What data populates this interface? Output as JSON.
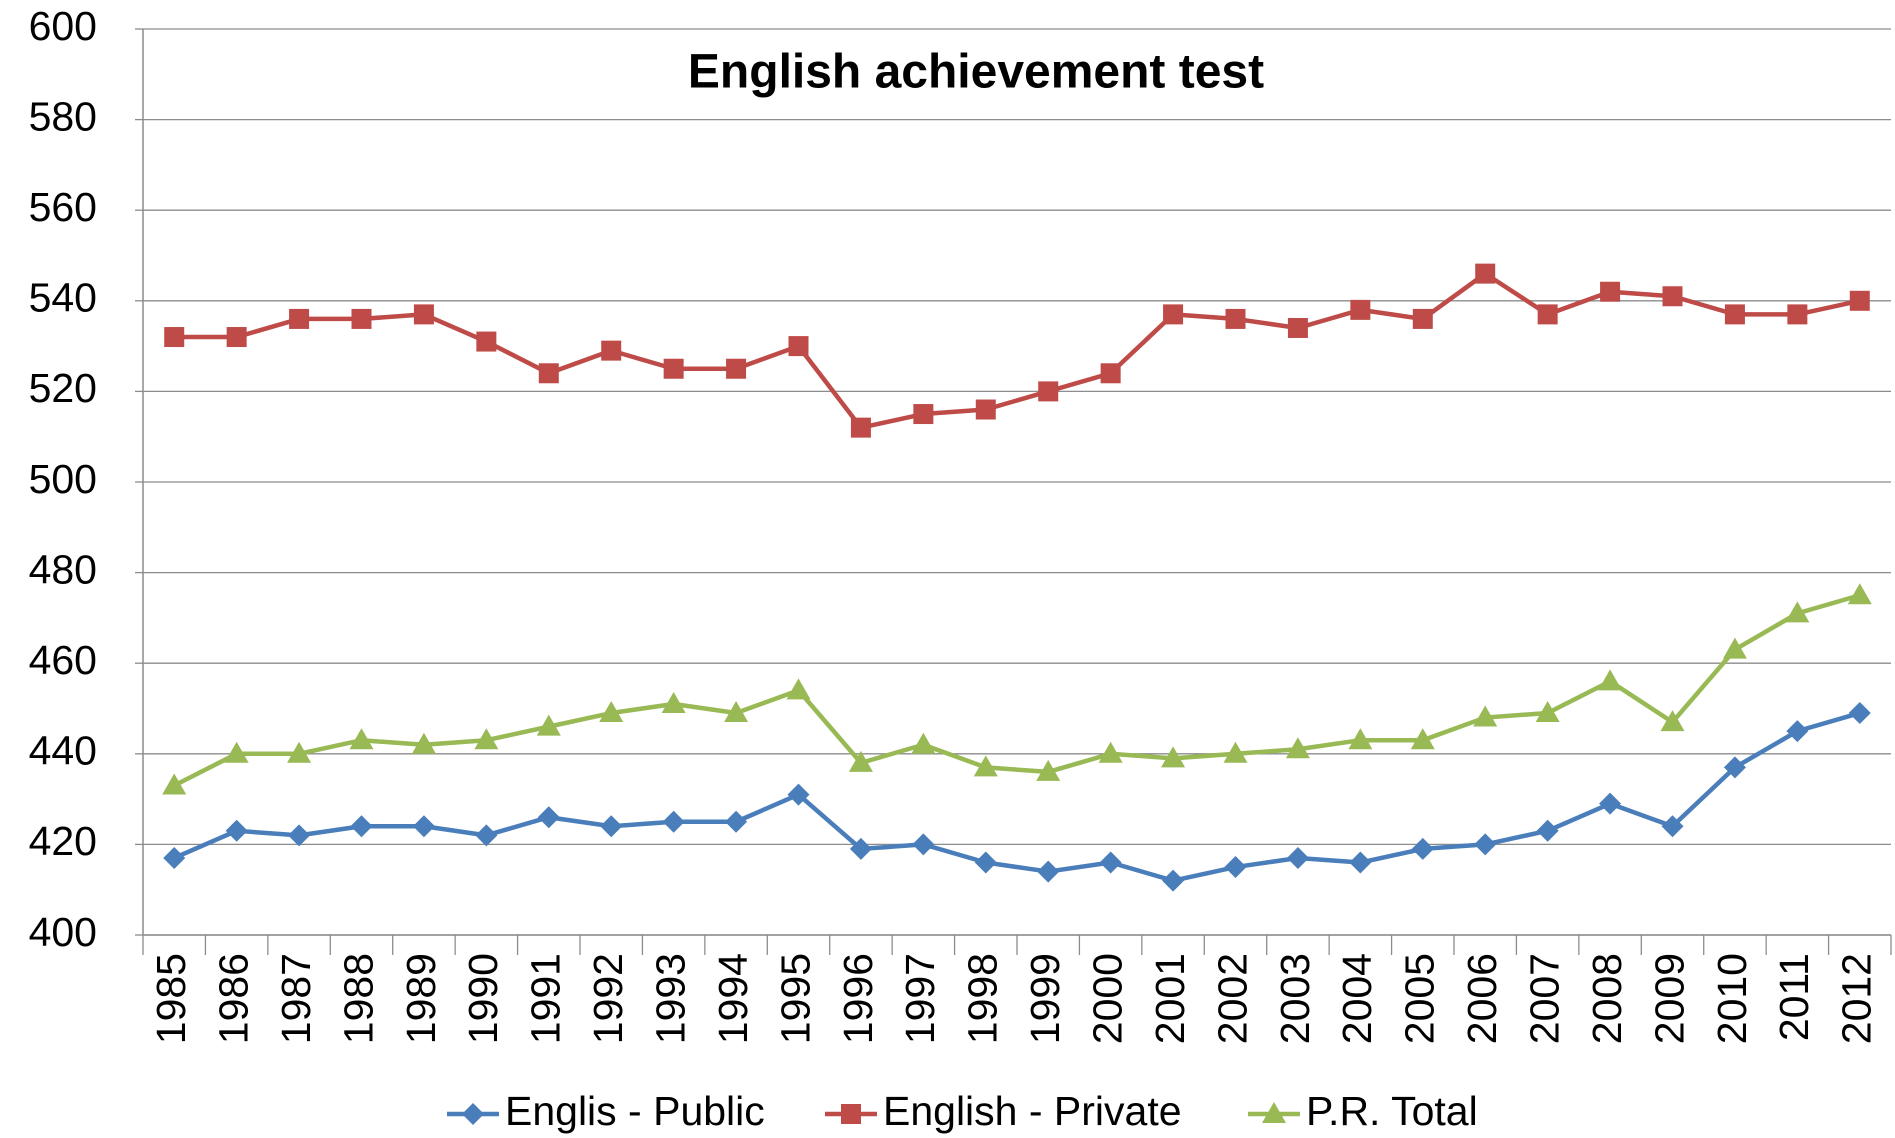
{
  "chart_data": {
    "type": "line",
    "title": "English achievement test",
    "categories": [
      "1985",
      "1986",
      "1987",
      "1988",
      "1989",
      "1990",
      "1991",
      "1992",
      "1993",
      "1994",
      "1995",
      "1996",
      "1997",
      "1998",
      "1999",
      "2000",
      "2001",
      "2002",
      "2003",
      "2004",
      "2005",
      "2006",
      "2007",
      "2008",
      "2009",
      "2010",
      "2011",
      "2012"
    ],
    "series": [
      {
        "name": "Englis - Public",
        "color": "#4a7ebb",
        "marker": "diamond",
        "values": [
          417,
          423,
          422,
          424,
          424,
          422,
          426,
          424,
          425,
          425,
          431,
          419,
          420,
          416,
          414,
          416,
          412,
          415,
          417,
          416,
          419,
          420,
          423,
          429,
          424,
          437,
          445,
          449
        ]
      },
      {
        "name": "English - Private",
        "color": "#be4b48",
        "marker": "square",
        "values": [
          532,
          532,
          536,
          536,
          537,
          531,
          524,
          529,
          525,
          525,
          530,
          512,
          515,
          516,
          520,
          524,
          537,
          536,
          534,
          538,
          536,
          546,
          537,
          542,
          541,
          537,
          537,
          540
        ]
      },
      {
        "name": "P.R. Total",
        "color": "#98b954",
        "marker": "triangle",
        "values": [
          433,
          440,
          440,
          443,
          442,
          443,
          446,
          449,
          451,
          449,
          454,
          438,
          442,
          437,
          436,
          440,
          439,
          440,
          441,
          443,
          443,
          448,
          449,
          456,
          447,
          463,
          471,
          475
        ]
      }
    ],
    "ylim": [
      400,
      600
    ],
    "yticks": [
      400,
      420,
      440,
      460,
      480,
      500,
      520,
      540,
      560,
      580,
      600
    ],
    "grid": true,
    "legend": "bottom"
  }
}
